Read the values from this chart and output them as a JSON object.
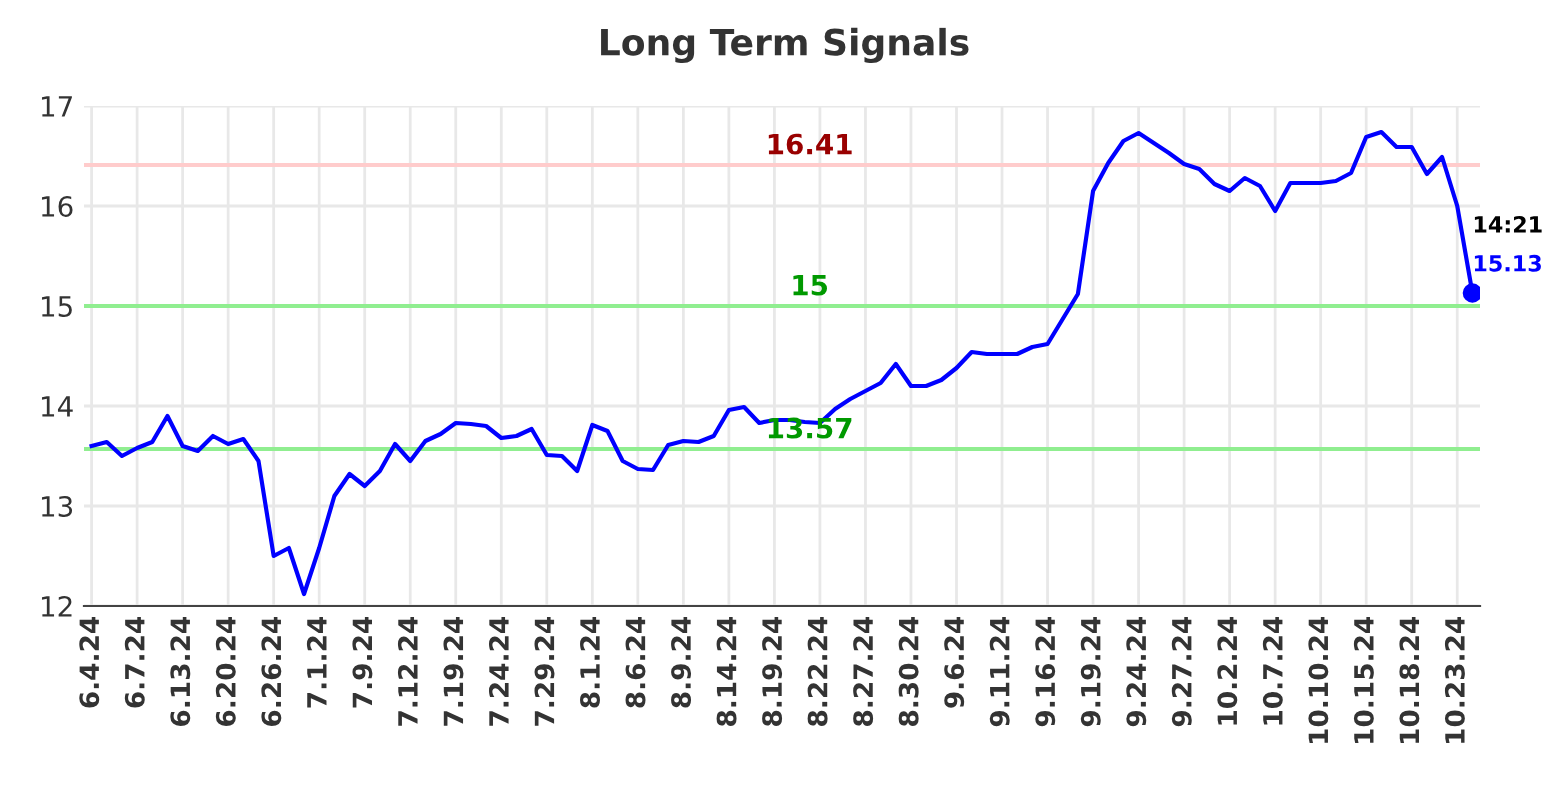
{
  "chart_data": {
    "type": "line",
    "title": "Long Term Signals",
    "categories": [
      "6.4.24",
      null,
      null,
      "6.7.24",
      null,
      null,
      "6.13.24",
      null,
      null,
      "6.20.24",
      null,
      null,
      "6.26.24",
      null,
      null,
      "7.1.24",
      null,
      null,
      "7.9.24",
      null,
      null,
      "7.12.24",
      null,
      null,
      "7.19.24",
      null,
      null,
      "7.24.24",
      null,
      null,
      "7.29.24",
      null,
      null,
      "8.1.24",
      null,
      null,
      "8.6.24",
      null,
      null,
      "8.9.24",
      null,
      null,
      "8.14.24",
      null,
      null,
      "8.19.24",
      null,
      null,
      "8.22.24",
      null,
      null,
      "8.27.24",
      null,
      null,
      "8.30.24",
      null,
      null,
      "9.6.24",
      null,
      null,
      "9.11.24",
      null,
      null,
      "9.16.24",
      null,
      null,
      "9.19.24",
      null,
      null,
      "9.24.24",
      null,
      null,
      "9.27.24",
      null,
      null,
      "10.2.24",
      null,
      null,
      "10.7.24",
      null,
      null,
      "10.10.24",
      null,
      null,
      "10.15.24",
      null,
      null,
      "10.18.24",
      null,
      null,
      "10.23.24",
      null
    ],
    "series": [
      {
        "color": "#0000ff",
        "values": [
          13.6,
          13.64,
          13.5,
          13.58,
          13.64,
          13.9,
          13.6,
          13.55,
          13.7,
          13.62,
          13.67,
          13.45,
          12.5,
          12.58,
          12.12,
          12.58,
          13.1,
          13.32,
          13.2,
          13.35,
          13.62,
          13.45,
          13.65,
          13.72,
          13.83,
          13.82,
          13.8,
          13.68,
          13.7,
          13.77,
          13.51,
          13.5,
          13.35,
          13.81,
          13.75,
          13.45,
          13.37,
          13.36,
          13.61,
          13.65,
          13.64,
          13.7,
          13.96,
          13.99,
          13.83,
          13.86,
          13.86,
          13.84,
          13.83,
          13.97,
          14.07,
          14.15,
          14.23,
          14.42,
          14.2,
          14.2,
          14.26,
          14.38,
          14.54,
          14.52,
          14.52,
          14.52,
          14.59,
          14.62,
          14.87,
          15.12,
          16.15,
          16.43,
          16.65,
          16.73,
          16.63,
          16.53,
          16.42,
          16.37,
          16.22,
          16.15,
          16.28,
          16.2,
          15.95,
          16.23,
          16.23,
          16.23,
          16.25,
          16.33,
          16.69,
          16.74,
          16.59,
          16.59,
          16.32,
          16.49,
          16.0,
          15.13
        ]
      }
    ],
    "ylim": [
      12,
      17
    ],
    "yticks": [
      12,
      13,
      14,
      15,
      16,
      17
    ],
    "grid": true,
    "ref_lines": [
      {
        "axis": "y",
        "value": 16.41,
        "label": "16.41",
        "color": "#ffcccc"
      },
      {
        "axis": "y",
        "value": 15,
        "label": "15",
        "color": "#90ee90"
      },
      {
        "axis": "y",
        "value": 13.57,
        "label": "13.57",
        "color": "#90ee90"
      }
    ],
    "annotations": [
      "14:21",
      "15.13"
    ]
  }
}
